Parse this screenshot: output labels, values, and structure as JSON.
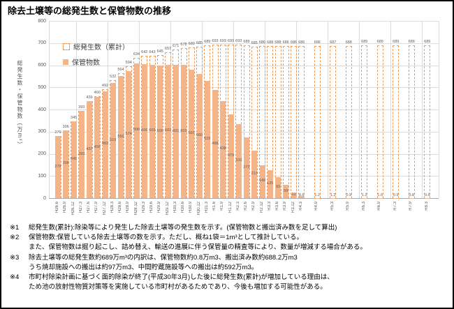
{
  "chart_data": {
    "type": "bar",
    "title": "除去土壌等の総発生数と保管物数の推移",
    "ylabel": "総発生数・保管物数（万m³）",
    "ylim": [
      0,
      800
    ],
    "ytick_interval": 100,
    "grid": true,
    "legend_position": "inside-top-left",
    "categories": [
      "H26.6",
      "H26.9",
      "H26.12",
      "H27.3",
      "H27.6",
      "H27.9",
      "H27.12",
      "H28.3",
      "H28.6",
      "H28.9",
      "H28.12",
      "H29.3",
      "H29.6",
      "H29.9",
      "H29.12",
      "H30.3",
      "H30.6",
      "H30.9",
      "H30.12",
      "H31.3",
      "R1.6",
      "R1.9",
      "R1.12",
      "R2.3",
      "R2.6",
      "R2.9",
      "R2.12",
      "R3.3",
      "R3.6",
      "R3.9",
      "R3.12",
      "R4.3",
      "R4.9",
      "R5.3",
      "R5.9",
      "R6.3",
      "R6.9",
      "R7.3",
      "R7.9",
      "R8.3"
    ],
    "x_month_offsets": [
      0,
      3,
      6,
      9,
      12,
      15,
      18,
      21,
      24,
      27,
      30,
      33,
      36,
      39,
      42,
      45,
      48,
      51,
      54,
      57,
      60,
      63,
      66,
      69,
      72,
      75,
      78,
      81,
      84,
      87,
      90,
      93,
      99,
      105,
      111,
      117,
      123,
      129,
      135,
      141
    ],
    "year_gridline_month_offsets": [
      7,
      19,
      31,
      43,
      55,
      67,
      79,
      91,
      103,
      115,
      127,
      139
    ],
    "series": [
      {
        "name": "総発生数（累計）",
        "style": "dashed-outline-bar",
        "color": "#ec9c5f",
        "values": [
          279,
          306,
          345,
          393,
          439,
          460,
          492,
          532,
          564,
          594,
          634,
          642,
          643,
          645,
          657,
          671,
          678,
          680,
          685,
          689,
          693,
          693,
          693,
          693,
          689,
          685,
          686,
          688,
          688,
          686,
          686,
          686,
          686,
          687,
          688,
          689,
          689,
          689,
          689,
          689
        ]
      },
      {
        "name": "保管物数",
        "style": "solid-bar",
        "color": "#f4b488",
        "values": [
          279,
          306,
          345,
          393,
          437,
          456,
          483,
          519,
          550,
          574,
          609,
          606,
          603,
          600,
          602,
          601,
          601,
          581,
          560,
          529,
          488,
          438,
          379,
          333,
          273,
          213,
          149,
          125,
          93,
          59,
          23,
          8.6,
          1.2,
          1.2,
          0.9,
          1.2,
          1.6,
          0.9,
          0.8,
          0.6
        ]
      }
    ]
  },
  "footnotes": [
    {
      "marker": "※1",
      "lines": [
        "総発生数(累計):除染等により発生した除去土壌等の発生数を示す。(保管物数と搬出済み数を足して算出)"
      ]
    },
    {
      "marker": "※2",
      "lines": [
        "保管物数:保管している除去土壌等の数を示す。ただし、概ね1袋＝1m³として推計している。",
        "また、保管物数は掘り起こし、詰め替え、輸送の進展に伴う保管量の精査等により、数量が増減する場合がある。"
      ]
    },
    {
      "marker": "※3",
      "lines": [
        "除去土壌等の総発生数約689万m³の内訳は、保管物数約0.8万m3、搬出済み数約688.2万m3",
        "うち焼却施設への搬出は約97万m3、中間貯蔵施設等への搬出は約592万m3。"
      ]
    },
    {
      "marker": "※4",
      "lines": [
        "市町村除染計画に基づく面的除染が終了(平成30年3月)した後に総発生数(累計)が増加している理由は、",
        "ため池の放射性物質対策等を実施している市町村があるためであり、今後も増加する可能性がある。"
      ]
    }
  ],
  "colors": {
    "bar_fill": "#f4b488",
    "bar_outline": "#ec9c5f",
    "gridline": "#dcdcdc",
    "axis": "#a8a8a8",
    "label_text": "#595959"
  }
}
